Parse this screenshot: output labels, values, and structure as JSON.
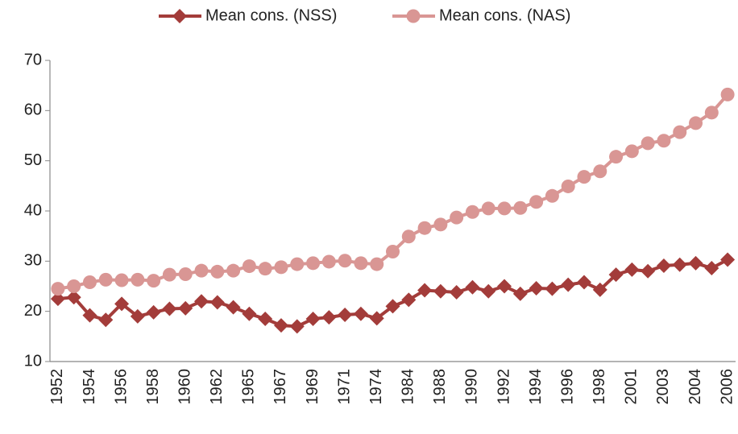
{
  "chart_data": {
    "type": "line",
    "categories": [
      "1952",
      null,
      "1954",
      null,
      "1956",
      null,
      "1958",
      null,
      "1960",
      null,
      "1962",
      null,
      "1965",
      null,
      "1967",
      null,
      "1969",
      null,
      "1971",
      null,
      "1974",
      null,
      "1984",
      null,
      "1988",
      null,
      "1990",
      null,
      "1992",
      null,
      "1994",
      null,
      "1996",
      null,
      "1998",
      null,
      "2001",
      null,
      "2003",
      null,
      "2004",
      null,
      "2006"
    ],
    "series": [
      {
        "name": "Mean cons. (NSS)",
        "color": "#a33c3a",
        "marker": "diamond",
        "values": [
          22.5,
          22.8,
          19.2,
          18.3,
          21.5,
          19,
          19.8,
          20.5,
          20.6,
          22,
          21.8,
          20.8,
          19.5,
          18.5,
          17.2,
          17,
          18.5,
          18.8,
          19.3,
          19.5,
          18.6,
          21,
          22.3,
          24.2,
          24,
          23.8,
          24.8,
          24,
          25,
          23.5,
          24.6,
          24.5,
          25.3,
          25.8,
          24.3,
          27.3,
          28.3,
          28,
          29.1,
          29.3,
          29.6,
          28.6,
          30.3
        ]
      },
      {
        "name": "Mean cons. (NAS)",
        "color": "#d99694",
        "marker": "circle",
        "values": [
          24.5,
          25,
          25.8,
          26.3,
          26.2,
          26.3,
          26.1,
          27.3,
          27.4,
          28.1,
          27.9,
          28.1,
          29,
          28.5,
          28.8,
          29.4,
          29.6,
          29.9,
          30.1,
          29.6,
          29.4,
          31.9,
          34.9,
          36.6,
          37.3,
          38.7,
          39.8,
          40.5,
          40.5,
          40.6,
          41.8,
          43,
          44.9,
          46.8,
          47.9,
          50.8,
          51.9,
          53.5,
          54,
          55.7,
          57.5,
          59.6,
          63.2
        ]
      }
    ],
    "ylim": [
      10,
      70
    ],
    "yticks": [
      10,
      20,
      30,
      40,
      50,
      60,
      70
    ],
    "grid": false,
    "legend": "top"
  }
}
